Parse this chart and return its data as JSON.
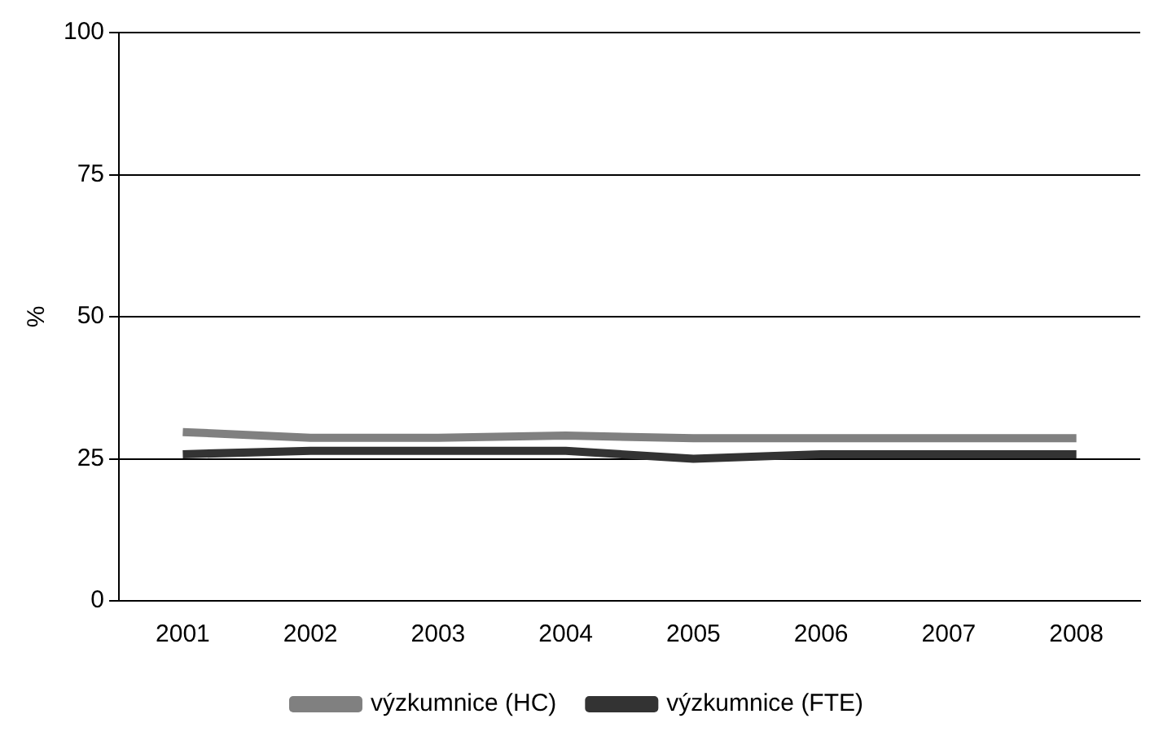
{
  "chart_data": {
    "type": "line",
    "ylabel": "%",
    "categories": [
      "2001",
      "2002",
      "2003",
      "2004",
      "2005",
      "2006",
      "2007",
      "2008"
    ],
    "series": [
      {
        "name": "výzkumnice (HC)",
        "color": "#808080",
        "values": [
          29.7,
          28.7,
          28.7,
          29.1,
          28.6,
          28.6,
          28.6,
          28.6
        ]
      },
      {
        "name": "výzkumnice (FTE)",
        "color": "#333333",
        "values": [
          25.8,
          26.4,
          26.4,
          26.4,
          25,
          25.8,
          25.8,
          25.8
        ]
      }
    ],
    "ylim": [
      0,
      100
    ],
    "yticks": [
      0,
      25,
      50,
      75,
      100
    ],
    "grid": "y",
    "legend": "bottom",
    "marker": "none",
    "line_style": "solid"
  }
}
